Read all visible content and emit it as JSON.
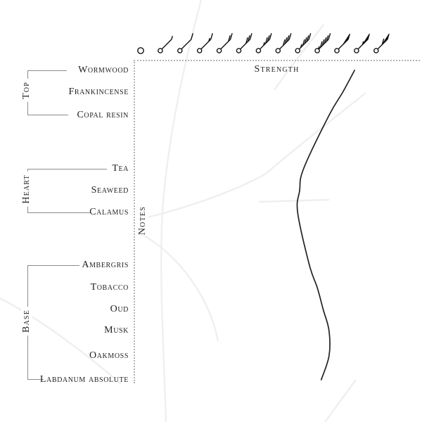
{
  "colors": {
    "background": "#ffffff",
    "text": "#1f1f1f",
    "bracket": "#8c8c8c",
    "axis_dotted": "#b3b3b3",
    "curve": "#222222",
    "icon": "#111111",
    "texture": "#ececec"
  },
  "axis_labels": {
    "x": "Strength",
    "y": "Notes"
  },
  "groups": [
    {
      "label": "Top",
      "notes": [
        "Wormwood",
        "Frankincense",
        "Copal resin"
      ]
    },
    {
      "label": "Heart",
      "notes": [
        "Tea",
        "Seaweed",
        "Calamus"
      ]
    },
    {
      "label": "Base",
      "notes": [
        "Ambergris",
        "Tobacco",
        "Oud",
        "Musk",
        "Oakmoss",
        "Labdanum absolute"
      ]
    }
  ],
  "strength_axis_icons": [
    {
      "name": "wind-barb-calm",
      "pennants": 0,
      "full_barbs": 0,
      "half_barbs": 0
    },
    {
      "name": "wind-barb-half",
      "pennants": 0,
      "full_barbs": 0,
      "half_barbs": 1
    },
    {
      "name": "wind-barb-1",
      "pennants": 0,
      "full_barbs": 1,
      "half_barbs": 0
    },
    {
      "name": "wind-barb-1-5",
      "pennants": 0,
      "full_barbs": 1,
      "half_barbs": 1
    },
    {
      "name": "wind-barb-2",
      "pennants": 0,
      "full_barbs": 2,
      "half_barbs": 0
    },
    {
      "name": "wind-barb-3",
      "pennants": 0,
      "full_barbs": 3,
      "half_barbs": 0
    },
    {
      "name": "wind-barb-3-5",
      "pennants": 0,
      "full_barbs": 3,
      "half_barbs": 1
    },
    {
      "name": "wind-barb-4",
      "pennants": 0,
      "full_barbs": 4,
      "half_barbs": 0
    },
    {
      "name": "wind-barb-4-5",
      "pennants": 0,
      "full_barbs": 4,
      "half_barbs": 1
    },
    {
      "name": "wind-barb-5-5",
      "pennants": 0,
      "full_barbs": 5,
      "half_barbs": 1
    },
    {
      "name": "wind-barb-pennant",
      "pennants": 1,
      "full_barbs": 0,
      "half_barbs": 0
    },
    {
      "name": "wind-barb-pennant-half",
      "pennants": 1,
      "full_barbs": 0,
      "half_barbs": 1
    },
    {
      "name": "wind-barb-pennant-1",
      "pennants": 1,
      "full_barbs": 1,
      "half_barbs": 0
    }
  ],
  "chart_data": {
    "type": "line",
    "title": "",
    "xlabel": "Strength",
    "ylabel": "Notes",
    "x_axis_style": "13 wind-barb strength icons increasing left to right (calm circle, barbs, pennant flags)",
    "xlim": [
      0,
      12
    ],
    "grid": false,
    "legend": false,
    "categories": [
      "Wormwood",
      "Frankincense",
      "Copal resin",
      "Tea",
      "Seaweed",
      "Calamus",
      "Ambergris",
      "Tobacco",
      "Oud",
      "Musk",
      "Oakmoss",
      "Labdanum absolute"
    ],
    "category_groups": [
      "Top",
      "Top",
      "Top",
      "Heart",
      "Heart",
      "Heart",
      "Base",
      "Base",
      "Base",
      "Base",
      "Base",
      "Base"
    ],
    "values": [
      10.9,
      10.3,
      9.6,
      8.3,
      8.1,
      8.0,
      8.6,
      9.0,
      9.3,
      9.6,
      9.6,
      9.2
    ]
  }
}
